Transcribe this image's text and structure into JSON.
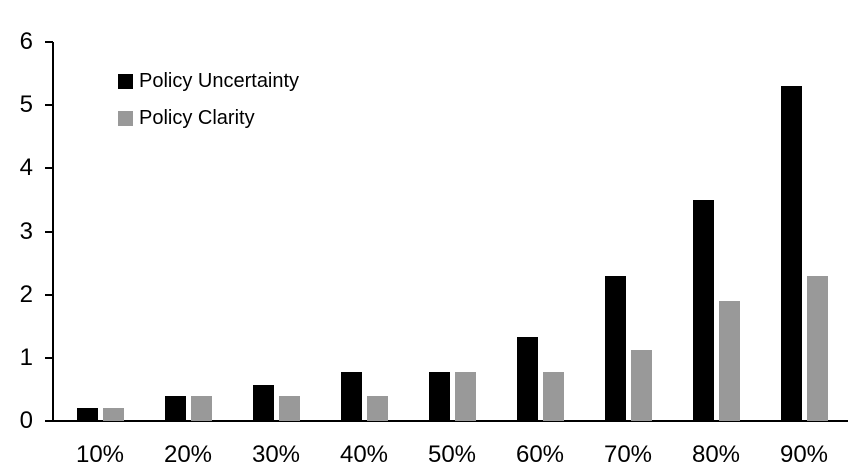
{
  "chart_data": {
    "type": "bar",
    "categories": [
      "10%",
      "20%",
      "30%",
      "40%",
      "50%",
      "60%",
      "70%",
      "80%",
      "90%"
    ],
    "series": [
      {
        "name": "Policy Uncertainty",
        "color": "#000000",
        "values": [
          0.2,
          0.4,
          0.57,
          0.77,
          0.78,
          1.33,
          2.3,
          3.5,
          5.3
        ]
      },
      {
        "name": "Policy Clarity",
        "color": "#999999",
        "values": [
          0.2,
          0.4,
          0.4,
          0.4,
          0.77,
          0.77,
          1.13,
          1.9,
          2.3
        ]
      }
    ],
    "ylim": [
      0,
      6
    ],
    "yticks": [
      0,
      1,
      2,
      3,
      4,
      5,
      6
    ],
    "grid": false,
    "legend_position": "inside-top-left",
    "axis_color": "#000000",
    "background": "#ffffff"
  }
}
